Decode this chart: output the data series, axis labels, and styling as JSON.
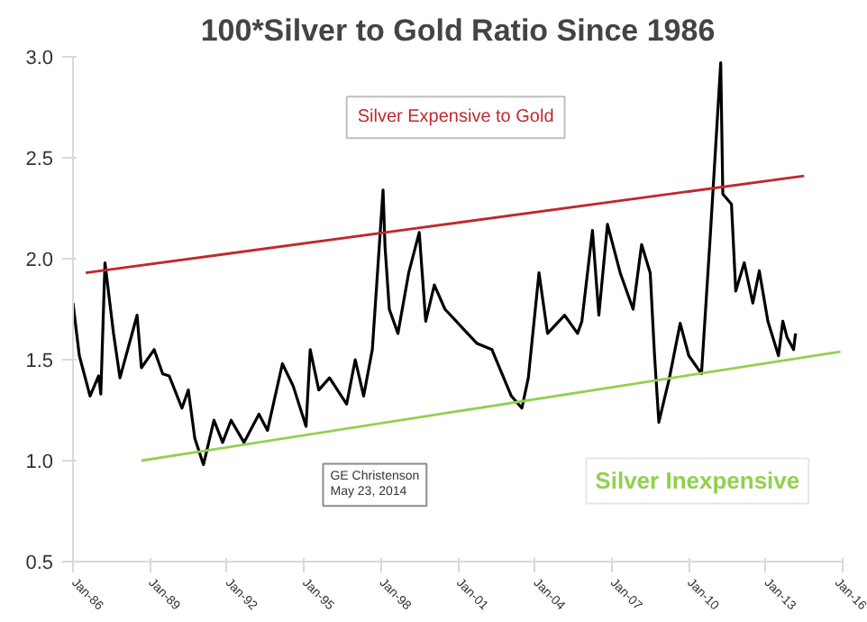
{
  "chart_data": {
    "type": "line",
    "title": "100*Silver to Gold Ratio Since 1986",
    "xlim": [
      "1986-01",
      "2016-01"
    ],
    "ylim": [
      0.5,
      3.0
    ],
    "xticks": [
      {
        "value": "1986-01",
        "label": "Jan-86"
      },
      {
        "value": "1989-01",
        "label": "Jan-89"
      },
      {
        "value": "1992-01",
        "label": "Jan-92"
      },
      {
        "value": "1995-01",
        "label": "Jan-95"
      },
      {
        "value": "1998-01",
        "label": "Jan-98"
      },
      {
        "value": "2001-01",
        "label": "Jan-01"
      },
      {
        "value": "2004-01",
        "label": "Jan-04"
      },
      {
        "value": "2007-01",
        "label": "Jan-07"
      },
      {
        "value": "2010-01",
        "label": "Jan-10"
      },
      {
        "value": "2013-01",
        "label": "Jan-13"
      },
      {
        "value": "2016-01",
        "label": "Jan-16"
      }
    ],
    "yticks": [
      0.5,
      {
        "value": 1,
        "label": "1.0"
      },
      1.5,
      {
        "value": 2,
        "label": "2.0"
      },
      2.5,
      {
        "value": 3,
        "label": "3.0"
      }
    ],
    "grid": false,
    "line_style": "solid",
    "series": [
      {
        "color": "#000000",
        "x": [
          "1986-01",
          "1986-04",
          "1986-09",
          "1987-01",
          "1987-02",
          "1987-04",
          "1987-08",
          "1987-11",
          "1988-07",
          "1988-09",
          "1989-03",
          "1989-07",
          "1989-10",
          "1990-04",
          "1990-07",
          "1990-10",
          "1991-02",
          "1991-07",
          "1991-11",
          "1992-03",
          "1992-09",
          "1993-04",
          "1993-08",
          "1994-03",
          "1994-08",
          "1995-02",
          "1995-04",
          "1995-08",
          "1996-01",
          "1996-09",
          "1997-01",
          "1997-05",
          "1997-09",
          "1998-02",
          "1998-03",
          "1998-05",
          "1998-09",
          "1999-02",
          "1999-07",
          "1999-10",
          "2000-02",
          "2000-07",
          "2001-10",
          "2002-05",
          "2003-02",
          "2003-07",
          "2003-10",
          "2004-03",
          "2004-07",
          "2005-03",
          "2005-09",
          "2005-11",
          "2006-04",
          "2006-07",
          "2006-11",
          "2007-05",
          "2007-11",
          "2008-03",
          "2008-07",
          "2008-09",
          "2008-11",
          "2009-04",
          "2009-09",
          "2010-01",
          "2010-07",
          "2010-11",
          "2011-04",
          "2011-05",
          "2011-09",
          "2011-11",
          "2012-03",
          "2012-07",
          "2012-10",
          "2013-02",
          "2013-07",
          "2013-09",
          "2013-11",
          "2014-02",
          "2014-03"
        ],
        "values": [
          1.78,
          1.52,
          1.32,
          1.42,
          1.33,
          1.98,
          1.63,
          1.41,
          1.72,
          1.46,
          1.55,
          1.43,
          1.42,
          1.26,
          1.35,
          1.11,
          0.98,
          1.2,
          1.09,
          1.2,
          1.09,
          1.23,
          1.15,
          1.48,
          1.37,
          1.17,
          1.55,
          1.35,
          1.41,
          1.28,
          1.5,
          1.32,
          1.55,
          2.34,
          2.06,
          1.75,
          1.63,
          1.93,
          2.13,
          1.69,
          1.87,
          1.75,
          1.58,
          1.55,
          1.32,
          1.26,
          1.41,
          1.93,
          1.63,
          1.72,
          1.63,
          1.69,
          2.14,
          1.72,
          2.17,
          1.93,
          1.75,
          2.07,
          1.93,
          1.52,
          1.19,
          1.41,
          1.68,
          1.52,
          1.43,
          2.1,
          2.97,
          2.32,
          2.27,
          1.84,
          1.98,
          1.78,
          1.94,
          1.69,
          1.52,
          1.69,
          1.61,
          1.55,
          1.63
        ]
      },
      {
        "color": "#c0282d",
        "x": [
          "1986-07",
          "2014-07"
        ],
        "values": [
          1.93,
          2.41
        ]
      },
      {
        "color": "#92d050",
        "x": [
          "1988-09",
          "2015-12"
        ],
        "values": [
          1.0,
          1.54
        ]
      }
    ],
    "annotations": [
      "Silver Expensive to Gold",
      "Silver Inexpensive",
      "GE Christenson\nMay 23, 2014"
    ]
  }
}
